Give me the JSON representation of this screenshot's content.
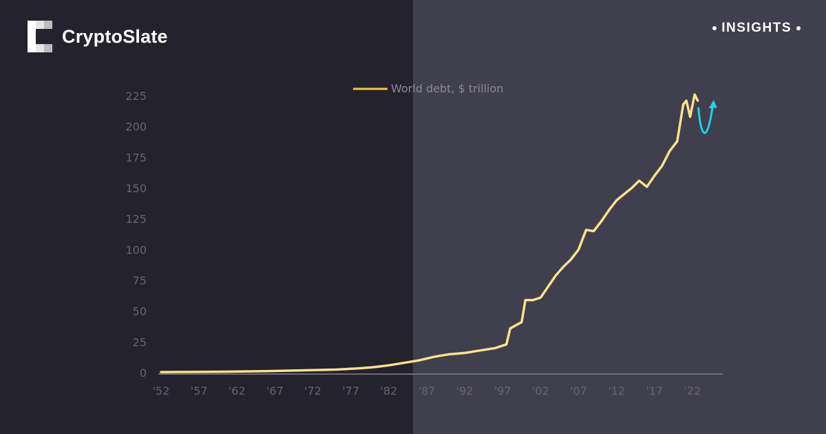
{
  "brand": {
    "name": "CryptoSlate",
    "icon": "cryptoslate-logo-icon"
  },
  "badge": {
    "label": "INSIGHTS"
  },
  "colors": {
    "line": "#fbe38e",
    "arrow": "#19d6e6",
    "legend_swatch": "#f5c542",
    "axis": "#6d6b7e"
  },
  "chart_data": {
    "type": "line",
    "title": "",
    "xlabel": "",
    "ylabel": "",
    "legend": {
      "labels": [
        "World debt, $ trillion"
      ],
      "placement": "top-center"
    },
    "xlim": [
      1952,
      2026
    ],
    "ylim": [
      0,
      225
    ],
    "x_ticks": [
      1952,
      1957,
      1962,
      1967,
      1972,
      1977,
      1982,
      1987,
      1992,
      1997,
      2002,
      2007,
      2012,
      2017,
      2022
    ],
    "x_tick_labels": [
      "'52",
      "'57",
      "'62",
      "'67",
      "'72",
      "'77",
      "'82",
      "'87",
      "'92",
      "'97",
      "'02",
      "'07",
      "'12",
      "'17",
      "'22"
    ],
    "y_ticks": [
      0,
      25,
      50,
      75,
      100,
      125,
      150,
      175,
      200,
      225
    ],
    "y_tick_labels": [
      "0",
      "25",
      "50",
      "75",
      "100",
      "125",
      "150",
      "175",
      "200",
      "225"
    ],
    "grid": false,
    "series": [
      {
        "name": "World debt, $ trillion",
        "x": [
          1952,
          1960,
          1965,
          1970,
          1975,
          1978,
          1980,
          1982,
          1984,
          1986,
          1988,
          1990,
          1992,
          1994,
          1996,
          1997.5,
          1998,
          1999.5,
          2000,
          2001,
          2002,
          2003,
          2004,
          2005,
          2006,
          2007,
          2008,
          2009,
          2010,
          2011,
          2012,
          2013,
          2014,
          2015,
          2016,
          2017,
          2018,
          2019,
          2020,
          2020.8,
          2021.2,
          2021.7,
          2022.3,
          2022.7
        ],
        "y": [
          0.5,
          0.8,
          1.2,
          1.8,
          2.5,
          3.5,
          4.5,
          6.0,
          8.0,
          10.0,
          13.0,
          15.0,
          16.0,
          18.0,
          20.0,
          23.0,
          36.0,
          41.0,
          59.0,
          59.0,
          61.0,
          70.0,
          79.0,
          86.0,
          92.0,
          100.0,
          116.0,
          115.0,
          123.0,
          132.0,
          140.0,
          145.0,
          150.0,
          156.0,
          151.0,
          160.0,
          168.0,
          180.0,
          188.0,
          218.0,
          221.0,
          208.0,
          226.0,
          221.0
        ]
      }
    ],
    "annotations": [
      {
        "type": "arrow",
        "shape": "dip-then-rise",
        "color": "#19d6e6",
        "x_range": [
          2022.8,
          2024.8
        ],
        "y_range": [
          192,
          217
        ]
      }
    ]
  }
}
